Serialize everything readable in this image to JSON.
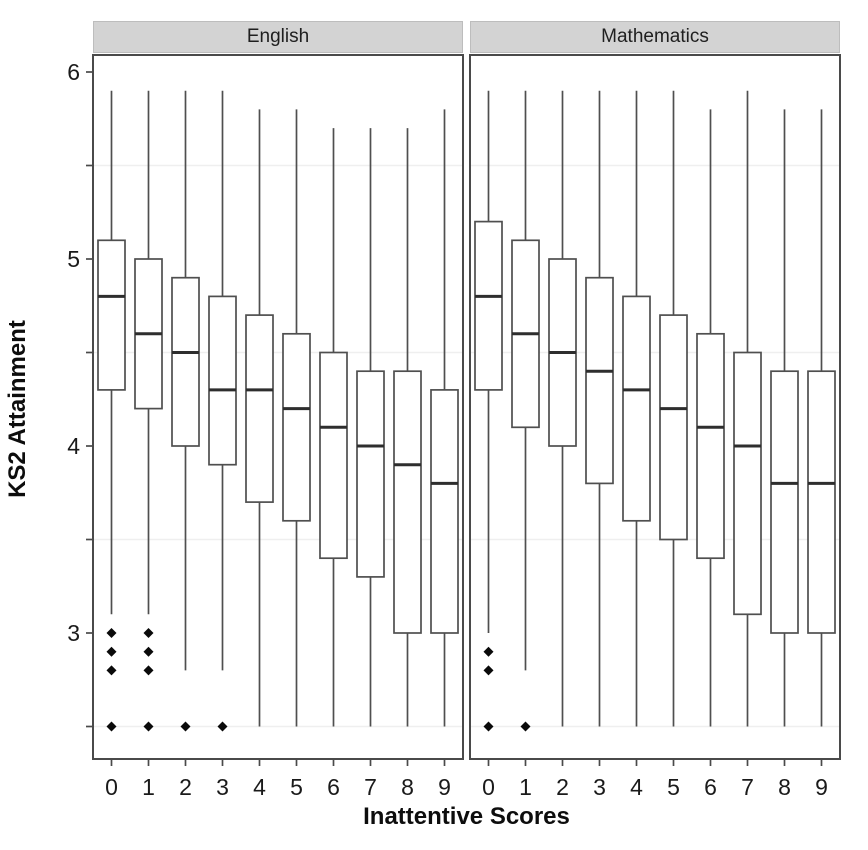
{
  "chart_data": {
    "type": "boxplot",
    "title": "",
    "xlabel": "Inattentive Scores",
    "ylabel": "KS2 Attainment",
    "x_categories": [
      "0",
      "1",
      "2",
      "3",
      "4",
      "5",
      "6",
      "7",
      "8",
      "9"
    ],
    "y_axis": {
      "major_ticks": [
        3,
        4,
        5,
        6
      ],
      "minor_ticks": [
        2.5,
        3.5,
        4.5,
        5.5
      ],
      "ylim": [
        2.33,
        6.08
      ],
      "grid": "minor-only"
    },
    "legend_position": "none",
    "facets": [
      {
        "label": "English",
        "boxes": [
          {
            "x": "0",
            "low": 3.1,
            "q1": 4.3,
            "median": 4.8,
            "q3": 5.1,
            "high": 5.9,
            "outliers": [
              3.0,
              2.9,
              2.8,
              2.5
            ]
          },
          {
            "x": "1",
            "low": 3.1,
            "q1": 4.2,
            "median": 4.6,
            "q3": 5.0,
            "high": 5.9,
            "outliers": [
              3.0,
              2.9,
              2.8,
              2.5
            ]
          },
          {
            "x": "2",
            "low": 2.8,
            "q1": 4.0,
            "median": 4.5,
            "q3": 4.9,
            "high": 5.9,
            "outliers": [
              2.5
            ]
          },
          {
            "x": "3",
            "low": 2.8,
            "q1": 3.9,
            "median": 4.3,
            "q3": 4.8,
            "high": 5.9,
            "outliers": [
              2.5
            ]
          },
          {
            "x": "4",
            "low": 2.5,
            "q1": 3.7,
            "median": 4.3,
            "q3": 4.7,
            "high": 5.8,
            "outliers": []
          },
          {
            "x": "5",
            "low": 2.5,
            "q1": 3.6,
            "median": 4.2,
            "q3": 4.6,
            "high": 5.8,
            "outliers": []
          },
          {
            "x": "6",
            "low": 2.5,
            "q1": 3.4,
            "median": 4.1,
            "q3": 4.5,
            "high": 5.7,
            "outliers": []
          },
          {
            "x": "7",
            "low": 2.5,
            "q1": 3.3,
            "median": 4.0,
            "q3": 4.4,
            "high": 5.7,
            "outliers": []
          },
          {
            "x": "8",
            "low": 2.5,
            "q1": 3.0,
            "median": 3.9,
            "q3": 4.4,
            "high": 5.7,
            "outliers": []
          },
          {
            "x": "9",
            "low": 2.5,
            "q1": 3.0,
            "median": 3.8,
            "q3": 4.3,
            "high": 5.8,
            "outliers": []
          }
        ]
      },
      {
        "label": "Mathematics",
        "boxes": [
          {
            "x": "0",
            "low": 3.0,
            "q1": 4.3,
            "median": 4.8,
            "q3": 5.2,
            "high": 5.9,
            "outliers": [
              2.9,
              2.8,
              2.5
            ]
          },
          {
            "x": "1",
            "low": 2.8,
            "q1": 4.1,
            "median": 4.6,
            "q3": 5.1,
            "high": 5.9,
            "outliers": [
              2.5
            ]
          },
          {
            "x": "2",
            "low": 2.5,
            "q1": 4.0,
            "median": 4.5,
            "q3": 5.0,
            "high": 5.9,
            "outliers": []
          },
          {
            "x": "3",
            "low": 2.5,
            "q1": 3.8,
            "median": 4.4,
            "q3": 4.9,
            "high": 5.9,
            "outliers": []
          },
          {
            "x": "4",
            "low": 2.5,
            "q1": 3.6,
            "median": 4.3,
            "q3": 4.8,
            "high": 5.9,
            "outliers": []
          },
          {
            "x": "5",
            "low": 2.5,
            "q1": 3.5,
            "median": 4.2,
            "q3": 4.7,
            "high": 5.9,
            "outliers": []
          },
          {
            "x": "6",
            "low": 2.5,
            "q1": 3.4,
            "median": 4.1,
            "q3": 4.6,
            "high": 5.8,
            "outliers": []
          },
          {
            "x": "7",
            "low": 2.5,
            "q1": 3.1,
            "median": 4.0,
            "q3": 4.5,
            "high": 5.9,
            "outliers": []
          },
          {
            "x": "8",
            "low": 2.5,
            "q1": 3.0,
            "median": 3.8,
            "q3": 4.4,
            "high": 5.8,
            "outliers": []
          },
          {
            "x": "9",
            "low": 2.5,
            "q1": 3.0,
            "median": 3.8,
            "q3": 4.4,
            "high": 5.8,
            "outliers": []
          }
        ]
      }
    ],
    "colors": {
      "strip_fill": "#d3d3d3",
      "panel_background": "#ffffff",
      "panel_border": "#4a4a4a",
      "box_stroke": "#4f4f4f",
      "box_fill": "#ffffff",
      "median_stroke": "#2e2e2e",
      "gridline": "#efefef",
      "outlier_fill": "#0a0a0a",
      "tick_label": "#1a1a1a"
    }
  }
}
